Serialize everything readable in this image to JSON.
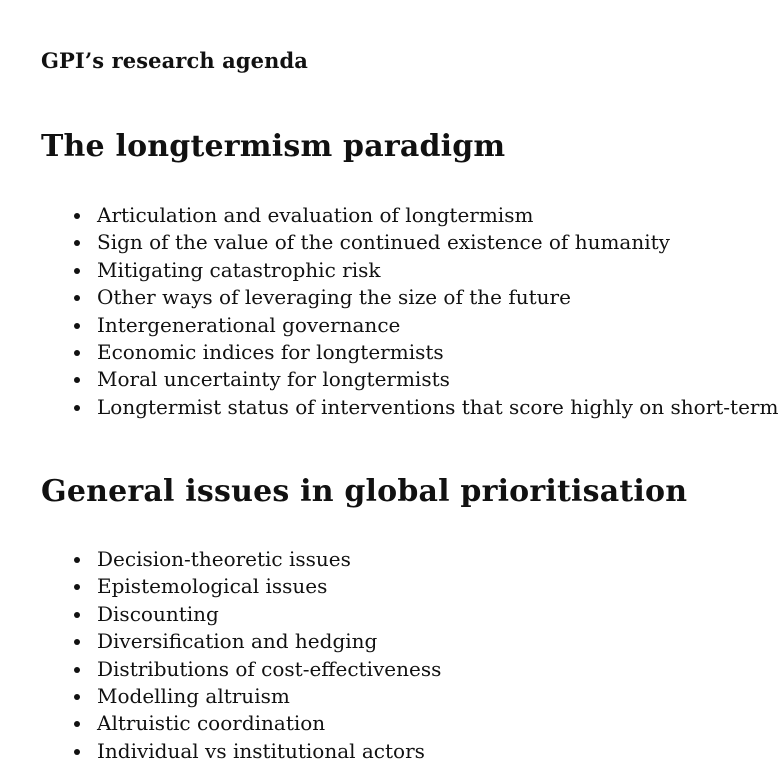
{
  "document": {
    "title": "GPI’s research agenda"
  },
  "sections": [
    {
      "heading": "The longtermism paradigm",
      "items": [
        "Articulation and evaluation of longtermism",
        "Sign of the value of the continued existence of humanity",
        "Mitigating catastrophic risk",
        "Other ways of leveraging the size of the future",
        "Intergenerational governance",
        "Economic indices for longtermists",
        "Moral uncertainty for longtermists",
        "Longtermist status of interventions that score highly on short-term me"
      ]
    },
    {
      "heading": "General issues in global prioritisation",
      "items": [
        "Decision-theoretic issues",
        "Epistemological issues",
        "Discounting",
        "Diversification and hedging",
        "Distributions of cost-effectiveness",
        "Modelling altruism",
        "Altruistic coordination",
        "Individual vs institutional actors"
      ]
    }
  ]
}
